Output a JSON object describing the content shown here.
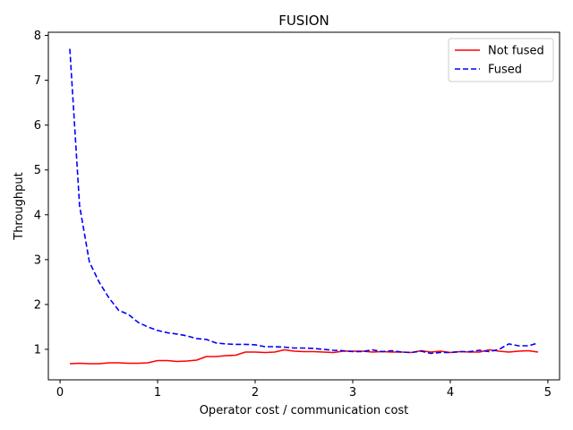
{
  "chart_data": {
    "type": "line",
    "title": "FUSION",
    "xlabel": "Operator cost / communication cost",
    "ylabel": "Throughput",
    "xlim": [
      -0.12,
      5.12
    ],
    "ylim": [
      0.32,
      8.07
    ],
    "xticks": [
      0,
      1,
      2,
      3,
      4,
      5
    ],
    "yticks": [
      1,
      2,
      3,
      4,
      5,
      6,
      7,
      8
    ],
    "grid": false,
    "legend_position": "top-right",
    "series": [
      {
        "name": "Not fused",
        "color": "#ff0000",
        "style": "solid",
        "x": [
          0.1,
          0.2,
          0.3,
          0.4,
          0.5,
          0.6,
          0.7,
          0.8,
          0.9,
          1.0,
          1.1,
          1.2,
          1.3,
          1.4,
          1.5,
          1.6,
          1.7,
          1.8,
          1.9,
          2.0,
          2.1,
          2.2,
          2.3,
          2.4,
          2.5,
          2.6,
          2.7,
          2.8,
          2.9,
          3.0,
          3.1,
          3.2,
          3.3,
          3.4,
          3.5,
          3.6,
          3.7,
          3.8,
          3.9,
          4.0,
          4.1,
          4.2,
          4.3,
          4.4,
          4.5,
          4.6,
          4.7,
          4.8,
          4.9
        ],
        "y": [
          0.68,
          0.69,
          0.68,
          0.68,
          0.7,
          0.7,
          0.69,
          0.69,
          0.7,
          0.75,
          0.75,
          0.73,
          0.74,
          0.76,
          0.84,
          0.84,
          0.86,
          0.87,
          0.94,
          0.94,
          0.93,
          0.94,
          0.99,
          0.96,
          0.95,
          0.95,
          0.94,
          0.93,
          0.96,
          0.96,
          0.96,
          0.94,
          0.95,
          0.94,
          0.94,
          0.93,
          0.97,
          0.94,
          0.96,
          0.93,
          0.95,
          0.94,
          0.94,
          0.99,
          0.96,
          0.94,
          0.96,
          0.97,
          0.94
        ]
      },
      {
        "name": "Fused",
        "color": "#0000ff",
        "style": "dashed",
        "x": [
          0.1,
          0.2,
          0.3,
          0.4,
          0.5,
          0.6,
          0.7,
          0.8,
          0.9,
          1.0,
          1.1,
          1.2,
          1.3,
          1.4,
          1.5,
          1.6,
          1.7,
          1.8,
          1.9,
          2.0,
          2.1,
          2.2,
          2.3,
          2.4,
          2.5,
          2.6,
          2.7,
          2.8,
          2.9,
          3.0,
          3.1,
          3.2,
          3.3,
          3.4,
          3.5,
          3.6,
          3.7,
          3.8,
          3.9,
          4.0,
          4.1,
          4.2,
          4.3,
          4.4,
          4.5,
          4.6,
          4.7,
          4.8,
          4.9
        ],
        "y": [
          7.7,
          4.2,
          2.95,
          2.5,
          2.15,
          1.87,
          1.78,
          1.6,
          1.5,
          1.42,
          1.37,
          1.34,
          1.3,
          1.24,
          1.22,
          1.14,
          1.12,
          1.11,
          1.11,
          1.1,
          1.06,
          1.06,
          1.05,
          1.03,
          1.03,
          1.02,
          1.0,
          0.98,
          0.97,
          0.95,
          0.95,
          0.99,
          0.95,
          0.97,
          0.94,
          0.93,
          0.96,
          0.91,
          0.93,
          0.93,
          0.95,
          0.95,
          0.98,
          0.95,
          1.0,
          1.12,
          1.08,
          1.08,
          1.14
        ]
      }
    ]
  }
}
